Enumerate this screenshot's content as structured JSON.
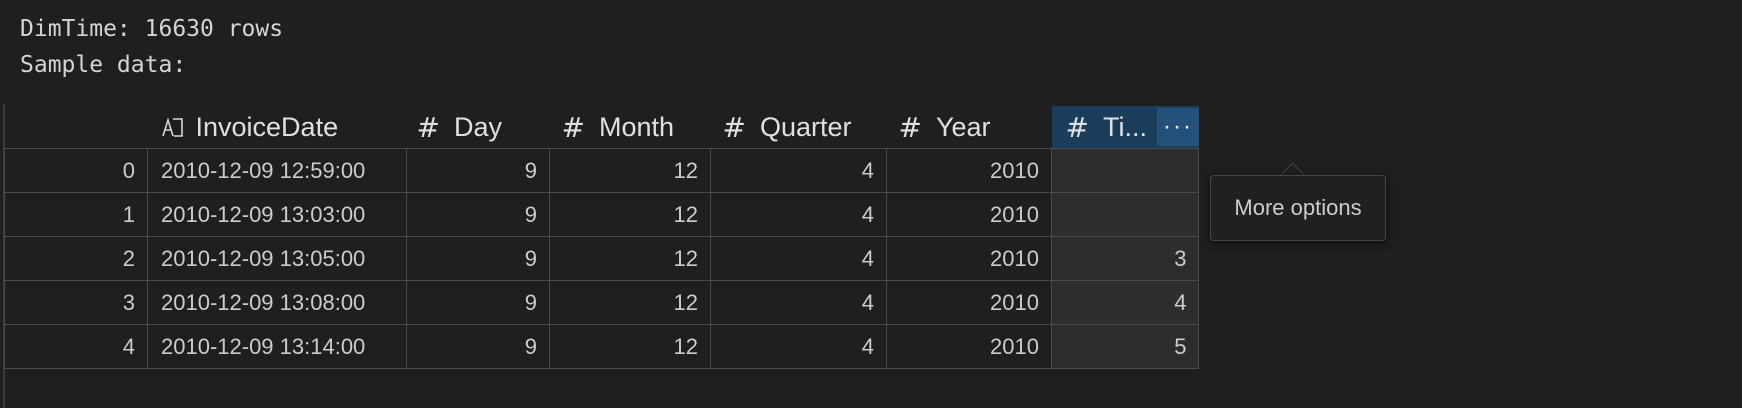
{
  "output": {
    "line1": "DimTime: 16630 rows",
    "line2": "Sample data:"
  },
  "table": {
    "columns": [
      {
        "label": "",
        "type": "index"
      },
      {
        "label": "InvoiceDate",
        "type": "text"
      },
      {
        "label": "Day",
        "type": "number"
      },
      {
        "label": "Month",
        "type": "number"
      },
      {
        "label": "Quarter",
        "type": "number"
      },
      {
        "label": "Year",
        "type": "number"
      },
      {
        "label": "Ti...",
        "type": "number"
      }
    ],
    "rows": [
      [
        "0",
        "2010-12-09 12:59:00",
        "9",
        "12",
        "4",
        "2010",
        ""
      ],
      [
        "1",
        "2010-12-09 13:03:00",
        "9",
        "12",
        "4",
        "2010",
        ""
      ],
      [
        "2",
        "2010-12-09 13:05:00",
        "9",
        "12",
        "4",
        "2010",
        "3"
      ],
      [
        "3",
        "2010-12-09 13:08:00",
        "9",
        "12",
        "4",
        "2010",
        "4"
      ],
      [
        "4",
        "2010-12-09 13:14:00",
        "9",
        "12",
        "4",
        "2010",
        "5"
      ]
    ],
    "more_button": "···",
    "hash_symbol": "#"
  },
  "tooltip": {
    "text": "More options"
  },
  "colors": {
    "background": "#1f1f1f",
    "active_header": "#1b3d5c",
    "more_button": "#24507a"
  }
}
